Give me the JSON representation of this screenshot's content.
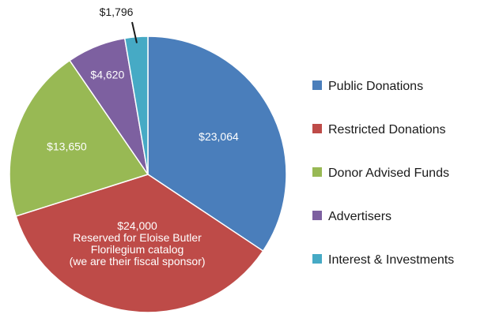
{
  "chart_data": {
    "type": "pie",
    "title": "",
    "categories": [
      "Public Donations",
      "Restricted Donations",
      "Donor Advised Funds",
      "Advertisers",
      "Interest & Investments"
    ],
    "values": [
      23064,
      24000,
      13650,
      4620,
      1796
    ],
    "colors": [
      "#4a7ebb",
      "#be4b48",
      "#98b954",
      "#7d60a0",
      "#46aac5"
    ],
    "data_labels": [
      [
        "$23,064"
      ],
      [
        "$24,000",
        "Reserved for Eloise Butler",
        "Florilegium catalog",
        "(we are their fiscal sponsor)"
      ],
      [
        "$13,650"
      ],
      [
        "$4,620"
      ],
      [
        "$1,796"
      ]
    ],
    "start_angle_deg": 0,
    "direction": "clockwise",
    "legend_position": "right"
  }
}
